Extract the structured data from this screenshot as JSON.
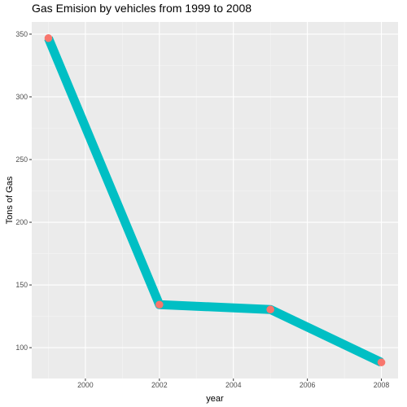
{
  "chart_data": {
    "type": "line",
    "title": "Gas Emision by vehicles from 1999 to 2008",
    "xlabel": "year",
    "ylabel": "Tons of Gas",
    "x": [
      1999,
      2002,
      2005,
      2008
    ],
    "series": [
      {
        "values": [
          346.82,
          134.31,
          130.43,
          88.28
        ]
      }
    ],
    "xlim": [
      1998.55,
      2008.45
    ],
    "ylim": [
      75.4,
      359.7
    ],
    "x_ticks": [
      2000,
      2002,
      2004,
      2006,
      2008
    ],
    "x_tick_labels": [
      "2000",
      "2002",
      "2004",
      "2006",
      "2008"
    ],
    "y_ticks": [
      100,
      150,
      200,
      250,
      300,
      350
    ],
    "y_tick_labels": [
      "100",
      "150",
      "200",
      "250",
      "300",
      "350"
    ],
    "grid": true,
    "legend": "none",
    "colors": {
      "panel_background": "#ebebeb",
      "grid_major": "#ffffff",
      "grid_minor": "#f5f5f5",
      "line": "#00bfc4",
      "points": "#f8766d",
      "tick_label": "#4d4d4d",
      "tick_mark": "#333333"
    }
  }
}
